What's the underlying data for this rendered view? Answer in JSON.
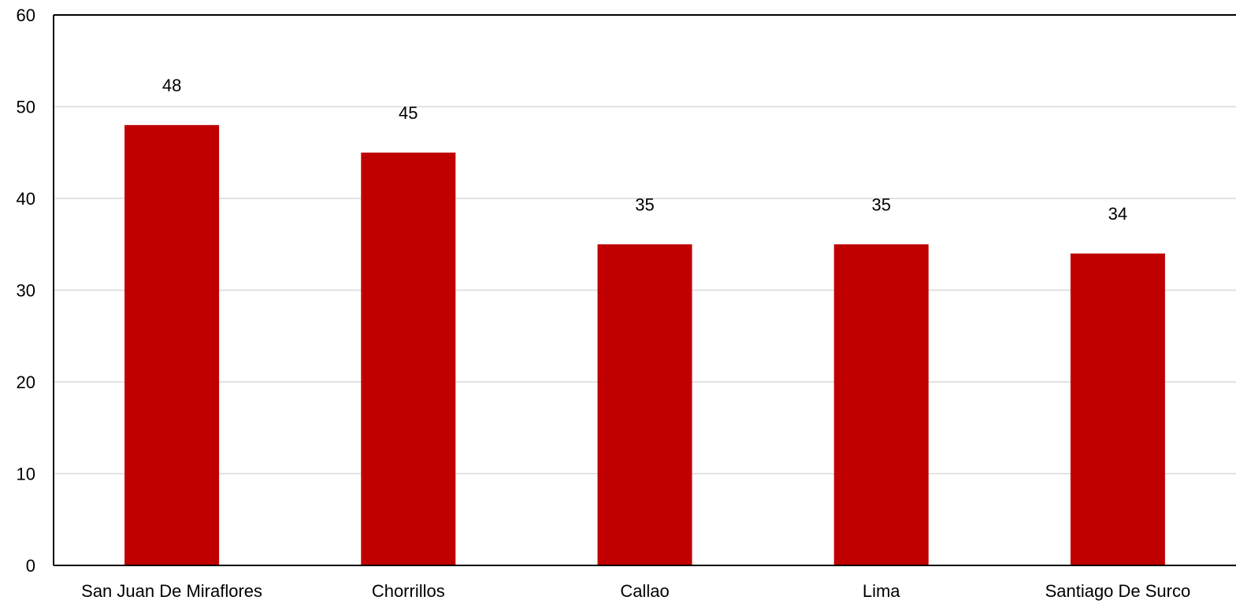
{
  "chart_data": {
    "type": "bar",
    "categories": [
      "San Juan De Miraflores",
      "Chorrillos",
      "Callao",
      "Lima",
      "Santiago De Surco"
    ],
    "values": [
      48,
      45,
      35,
      35,
      34
    ],
    "data_labels": [
      "48",
      "45",
      "35",
      "35",
      "34"
    ],
    "title": "",
    "xlabel": "",
    "ylabel": "",
    "ylim": [
      0,
      60
    ],
    "yticks": [
      0,
      10,
      20,
      30,
      40,
      50,
      60
    ],
    "ytick_labels": [
      "0",
      "10",
      "20",
      "30",
      "40",
      "50",
      "60"
    ],
    "grid": true,
    "legend": "none",
    "bar_color": "#c00000"
  }
}
